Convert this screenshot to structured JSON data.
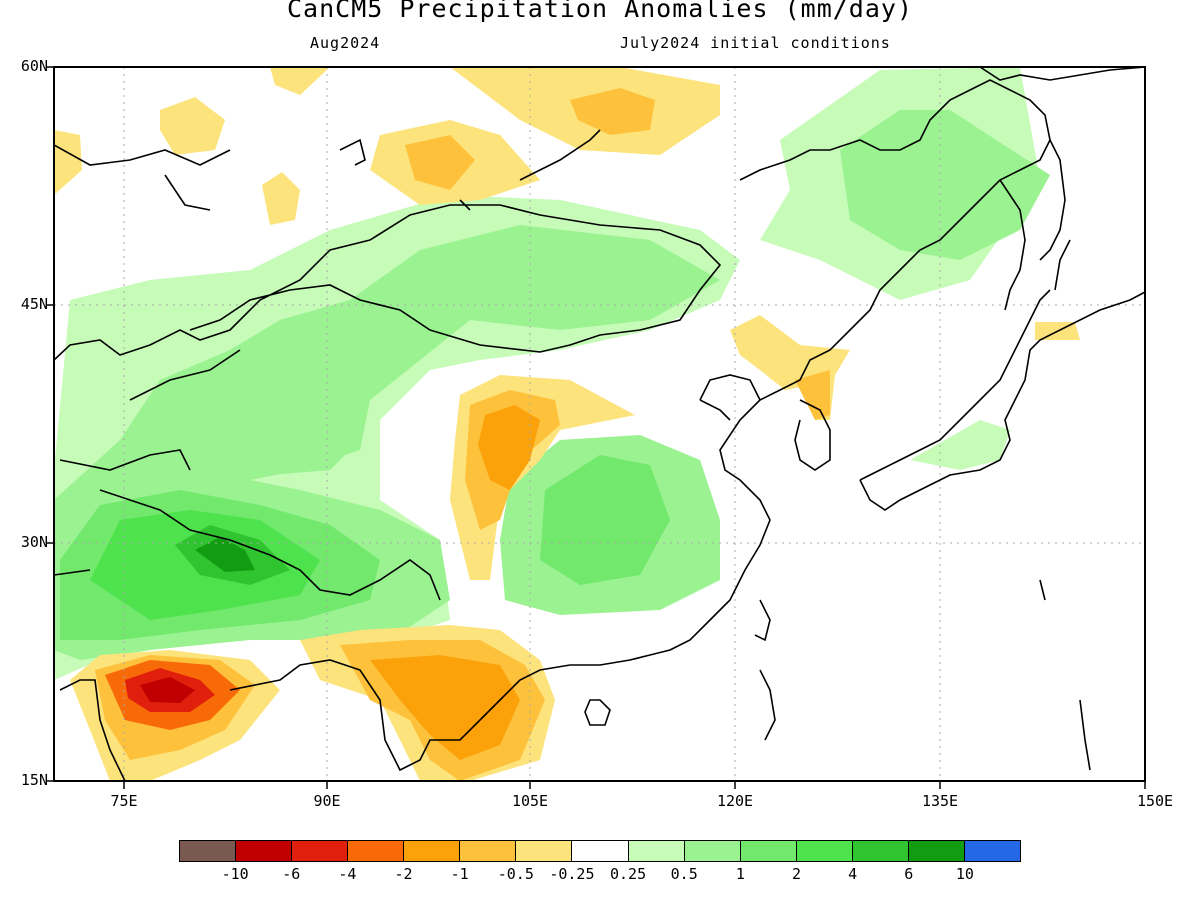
{
  "title": "CanCM5 Precipitation Anomalies (mm/day)",
  "subtitle_left": "Aug2024",
  "subtitle_right": "July2024 initial conditions",
  "lat_labels": [
    "60N",
    "45N",
    "30N",
    "15N"
  ],
  "lon_labels": [
    "75E",
    "90E",
    "105E",
    "120E",
    "135E",
    "150E"
  ],
  "colorbar": {
    "colors": [
      "#7a5a50",
      "#c00000",
      "#e0200c",
      "#f86a08",
      "#fba20b",
      "#fdc13c",
      "#fde37b",
      "#ffffff",
      "#c6fbb8",
      "#9af291",
      "#72e86d",
      "#4ee24c",
      "#30c430",
      "#129c12",
      "#2468e6"
    ],
    "labels": [
      "-10",
      "-6",
      "-4",
      "-2",
      "-1",
      "-0.5",
      "-0.25",
      "0.25",
      "0.5",
      "1",
      "2",
      "4",
      "6",
      "10"
    ]
  }
}
